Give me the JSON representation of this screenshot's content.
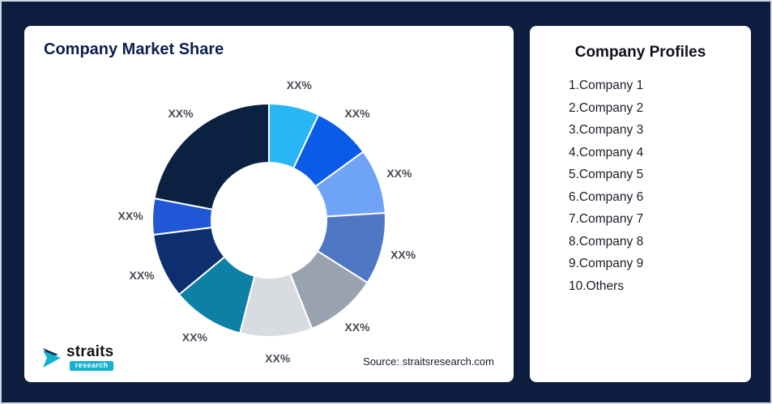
{
  "page": {
    "background_color": "#0d1d3f"
  },
  "left_card": {
    "title": "Company Market Share",
    "source": "Source: straitsresearch.com",
    "logo": {
      "brand": "straits",
      "sub": "research"
    }
  },
  "right_card": {
    "title": "Company Profiles",
    "items": [
      "1.Company 1",
      "2.Company 2",
      "3.Company 3",
      "4.Company 4",
      "5.Company 5",
      "6.Company 6",
      "7.Company 7",
      "8.Company 8",
      "9.Company 9",
      "10.Others"
    ]
  },
  "chart_data": {
    "type": "pie",
    "subtype": "donut",
    "title": "Company Market Share",
    "labels": [
      "XX%",
      "XX%",
      "XX%",
      "XX%",
      "XX%",
      "XX%",
      "XX%",
      "XX%",
      "XX%",
      "XX%"
    ],
    "values": [
      7,
      8,
      9,
      10,
      10,
      10,
      10,
      9,
      5,
      22
    ],
    "colors": [
      "#29b6f6",
      "#0a5ce8",
      "#6ea3f5",
      "#4f77c4",
      "#99a3af",
      "#d8dce0",
      "#0e80a6",
      "#0e2f6e",
      "#1f57d6",
      "#0b2142"
    ],
    "start_angle_deg": -90,
    "direction": "clockwise",
    "inner_radius_ratio": 0.49,
    "legend": "none",
    "separator_color": "#ffffff"
  }
}
